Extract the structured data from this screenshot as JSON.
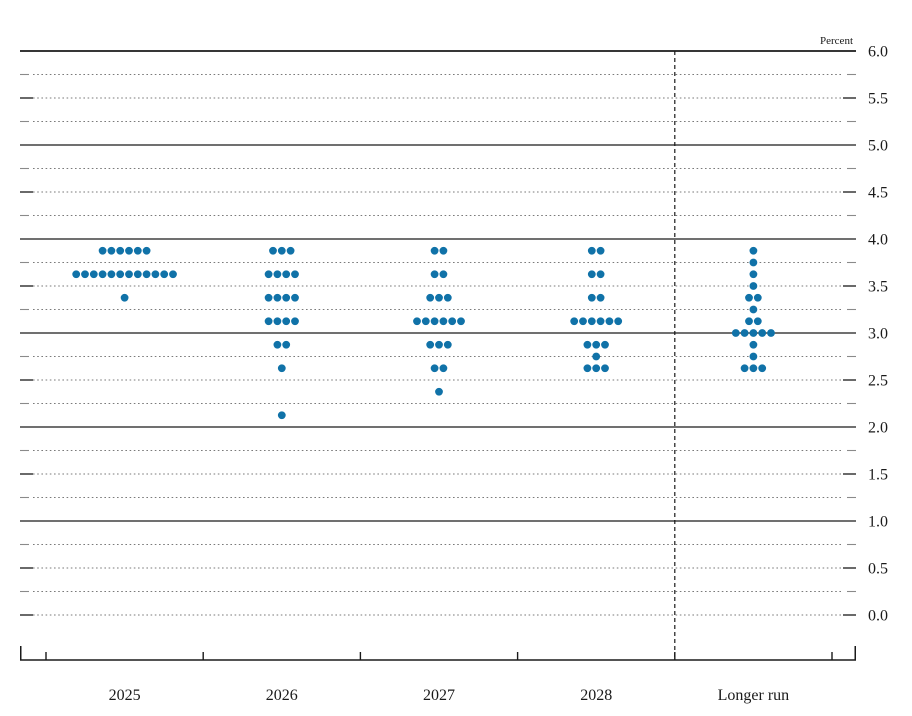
{
  "figure": {
    "percent_label": "Percent"
  },
  "colors": {
    "dot": "#1072a8",
    "solid_line": "#1a1a1a",
    "dotted_line": "#7a7a7a",
    "half_tick_dash": "#2a2a2a",
    "quarter_tick_dash": "#8a8a8a",
    "text": "#1a1a1a"
  },
  "chart_data": {
    "type": "scatter",
    "subtype": "fomc-dot-plot",
    "title": "",
    "ylabel": "Percent",
    "ylim": [
      0.0,
      6.0
    ],
    "grid": "dotted lines at each 0.25; solid lines at integers; dashed vertical separator before Longer run",
    "legend_position": "none",
    "yticks": [
      "6.0",
      "5.5",
      "5.0",
      "4.5",
      "4.0",
      "3.5",
      "3.0",
      "2.5",
      "2.0",
      "1.5",
      "1.0",
      "0.5",
      "0.0"
    ],
    "categories": [
      "2025",
      "2026",
      "2027",
      "2028",
      "Longer run"
    ],
    "series": [
      {
        "category": "2025",
        "distribution": [
          {
            "rate": 3.875,
            "count": 6
          },
          {
            "rate": 3.625,
            "count": 12
          },
          {
            "rate": 3.375,
            "count": 1
          }
        ]
      },
      {
        "category": "2026",
        "distribution": [
          {
            "rate": 3.875,
            "count": 3
          },
          {
            "rate": 3.625,
            "count": 4
          },
          {
            "rate": 3.375,
            "count": 4
          },
          {
            "rate": 3.125,
            "count": 4
          },
          {
            "rate": 2.875,
            "count": 2
          },
          {
            "rate": 2.625,
            "count": 1
          },
          {
            "rate": 2.125,
            "count": 1
          }
        ]
      },
      {
        "category": "2027",
        "distribution": [
          {
            "rate": 3.875,
            "count": 2
          },
          {
            "rate": 3.625,
            "count": 2
          },
          {
            "rate": 3.375,
            "count": 3
          },
          {
            "rate": 3.125,
            "count": 6
          },
          {
            "rate": 2.875,
            "count": 3
          },
          {
            "rate": 2.625,
            "count": 2
          },
          {
            "rate": 2.375,
            "count": 1
          }
        ]
      },
      {
        "category": "2028",
        "distribution": [
          {
            "rate": 3.875,
            "count": 2
          },
          {
            "rate": 3.625,
            "count": 2
          },
          {
            "rate": 3.375,
            "count": 2
          },
          {
            "rate": 3.125,
            "count": 6
          },
          {
            "rate": 2.875,
            "count": 3
          },
          {
            "rate": 2.75,
            "count": 1
          },
          {
            "rate": 2.625,
            "count": 3
          }
        ]
      },
      {
        "category": "Longer run",
        "distribution": [
          {
            "rate": 3.875,
            "count": 1
          },
          {
            "rate": 3.75,
            "count": 1
          },
          {
            "rate": 3.625,
            "count": 1
          },
          {
            "rate": 3.5,
            "count": 1
          },
          {
            "rate": 3.375,
            "count": 2
          },
          {
            "rate": 3.25,
            "count": 1
          },
          {
            "rate": 3.125,
            "count": 2
          },
          {
            "rate": 3.0,
            "count": 5
          },
          {
            "rate": 2.875,
            "count": 1
          },
          {
            "rate": 2.75,
            "count": 1
          },
          {
            "rate": 2.625,
            "count": 3
          }
        ]
      }
    ]
  }
}
